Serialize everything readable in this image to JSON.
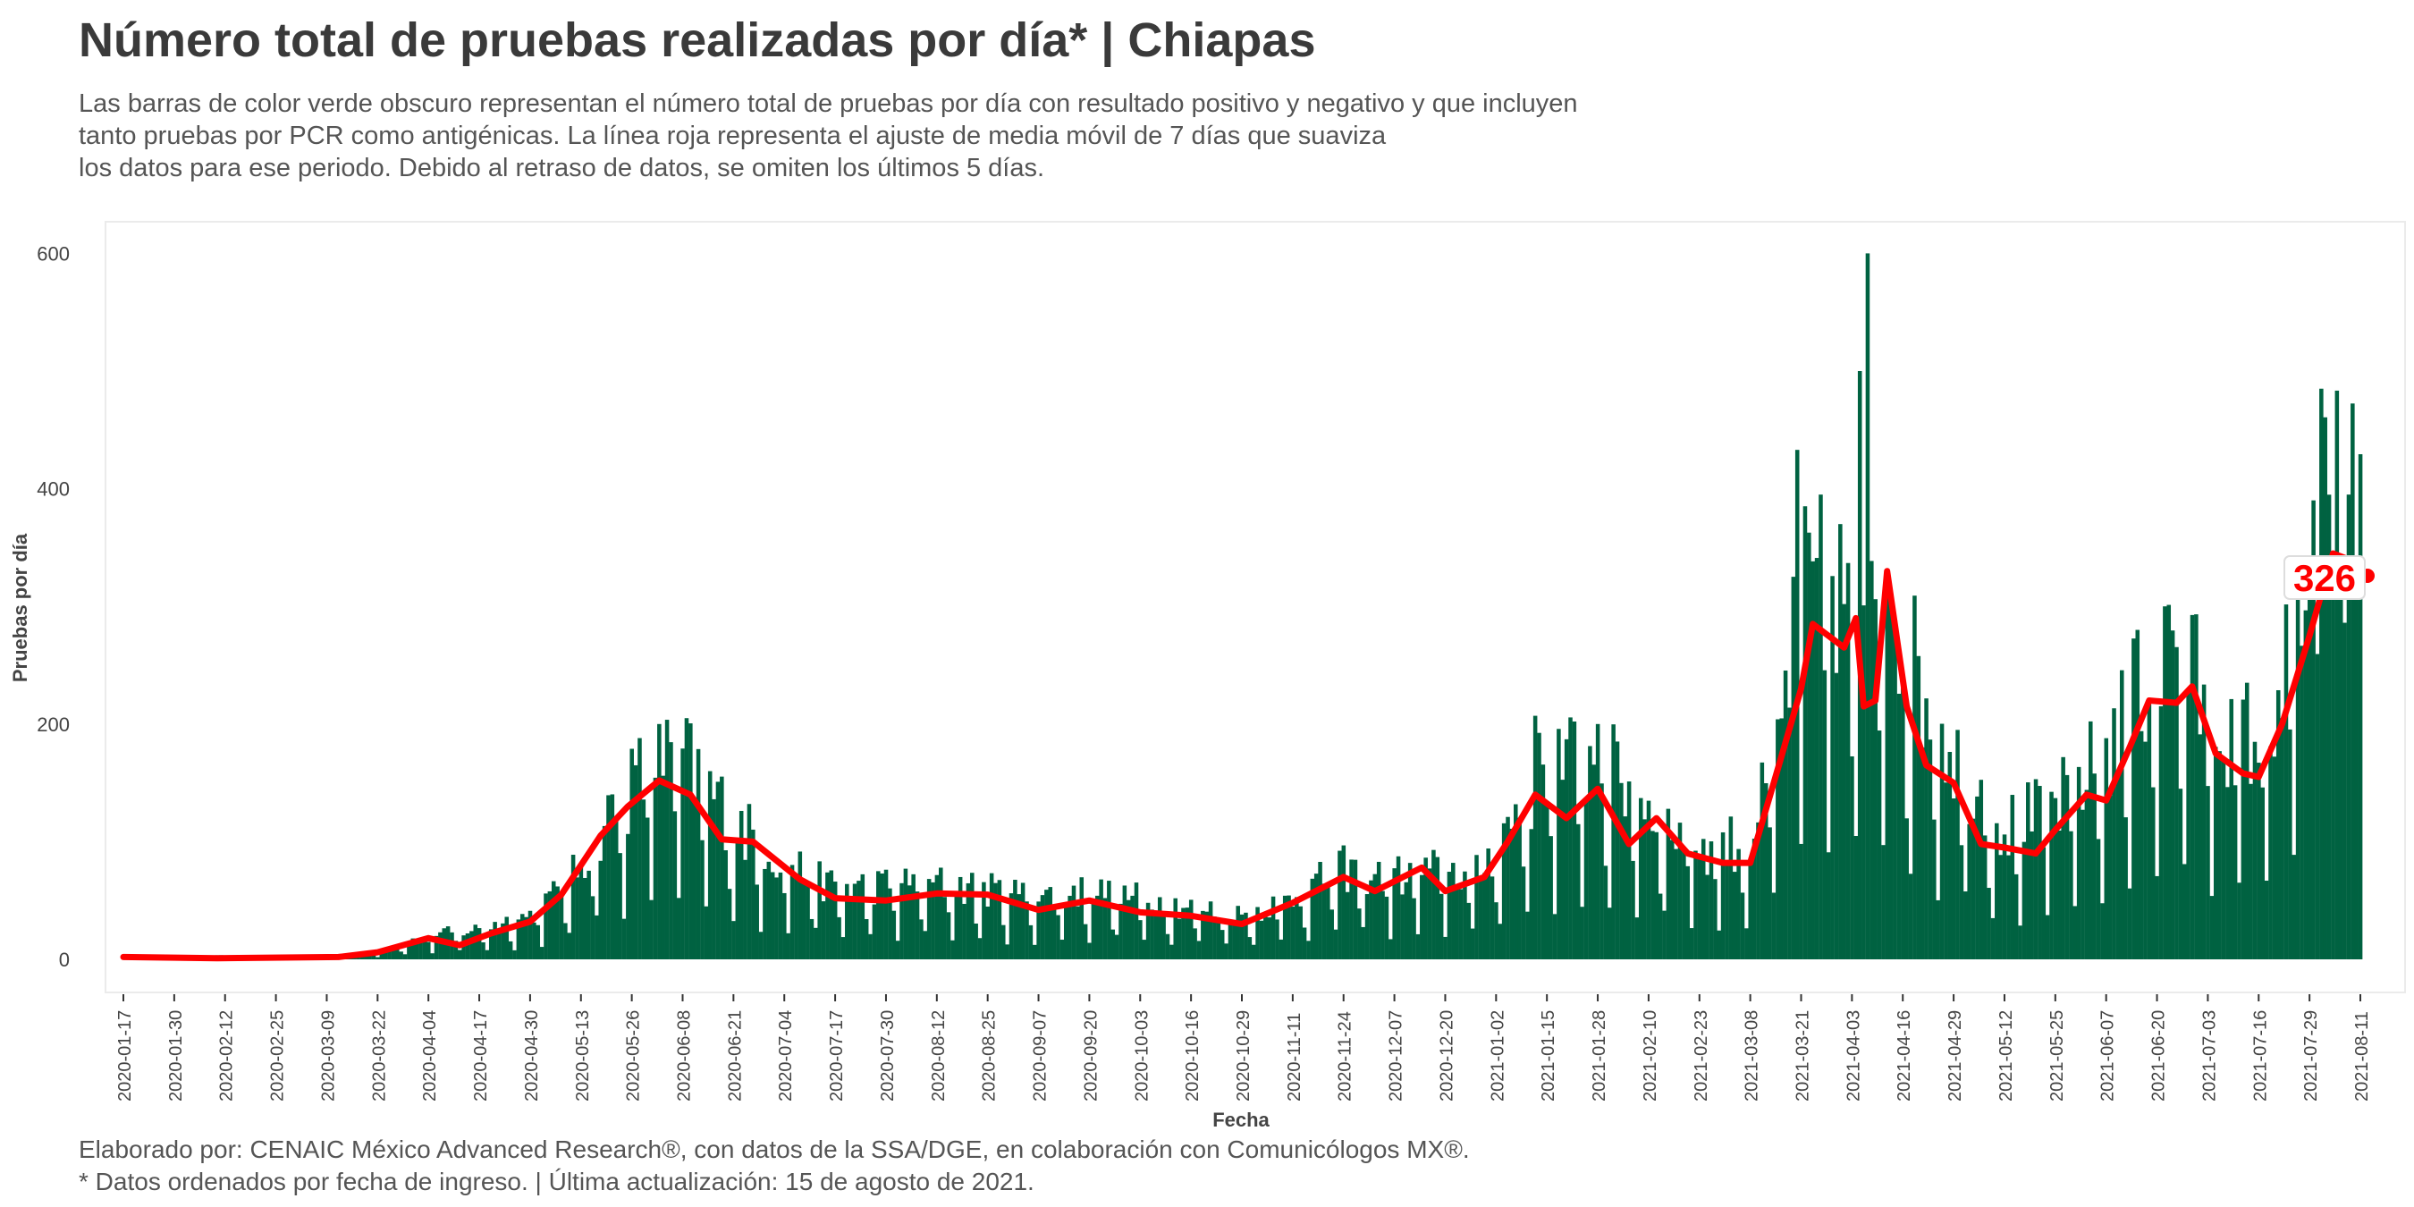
{
  "title": "Número total de pruebas realizadas por día* | Chiapas",
  "subtitle_lines": [
    "Las barras de color verde obscuro representan el número total de pruebas por día con resultado positivo y negativo y que incluyen",
    "tanto pruebas por PCR como antigénicas. La línea roja representa el ajuste de media móvil de 7 días que suaviza",
    "los datos para ese periodo. Debido al retraso de datos, se omiten los últimos 5 días."
  ],
  "caption_lines": [
    "Elaborado por: CENAIC México Advanced Research®, con datos de la SSA/DGE, en colaboración con Comunicólogos MX®.",
    "* Datos ordenados por fecha de ingreso. | Última actualización: 15 de agosto de 2021."
  ],
  "colors": {
    "bars": "#006241",
    "line": "#ff0000",
    "label_text": "#ff0000"
  },
  "chart_data": {
    "type": "bar",
    "title": "Número total de pruebas realizadas por día* | Chiapas",
    "xlabel": "Fecha",
    "ylabel": "Pruebas por día",
    "x_start": "2020-01-17",
    "x_end": "2021-08-11",
    "ylim": [
      0,
      620
    ],
    "y_ticks": [
      0,
      200,
      400,
      600
    ],
    "x_ticks": [
      "2020-01-17",
      "2020-01-30",
      "2020-02-12",
      "2020-02-25",
      "2020-03-09",
      "2020-03-22",
      "2020-04-04",
      "2020-04-17",
      "2020-04-30",
      "2020-05-13",
      "2020-05-26",
      "2020-06-08",
      "2020-06-21",
      "2020-07-04",
      "2020-07-17",
      "2020-07-30",
      "2020-08-12",
      "2020-08-25",
      "2020-09-07",
      "2020-09-20",
      "2020-10-03",
      "2020-10-16",
      "2020-10-29",
      "2020-11-11",
      "2020-11-24",
      "2020-12-07",
      "2020-12-20",
      "2021-01-02",
      "2021-01-15",
      "2021-01-28",
      "2021-02-10",
      "2021-02-23",
      "2021-03-08",
      "2021-03-21",
      "2021-04-03",
      "2021-04-16",
      "2021-04-29",
      "2021-05-12",
      "2021-05-25",
      "2021-06-07",
      "2021-06-20",
      "2021-07-03",
      "2021-07-16",
      "2021-07-29",
      "2021-08-11"
    ],
    "grid": false,
    "bars_anchors": [
      [
        "2020-01-17",
        2
      ],
      [
        "2020-03-15",
        3
      ],
      [
        "2020-03-25",
        8
      ],
      [
        "2020-04-04",
        17
      ],
      [
        "2020-04-17",
        22
      ],
      [
        "2020-04-30",
        32
      ],
      [
        "2020-05-10",
        55
      ],
      [
        "2020-05-18",
        95
      ],
      [
        "2020-05-26",
        125
      ],
      [
        "2020-06-02",
        150
      ],
      [
        "2020-06-10",
        140
      ],
      [
        "2020-06-21",
        100
      ],
      [
        "2020-07-04",
        70
      ],
      [
        "2020-07-17",
        52
      ],
      [
        "2020-08-12",
        55
      ],
      [
        "2020-09-07",
        45
      ],
      [
        "2020-09-20",
        50
      ],
      [
        "2020-10-16",
        38
      ],
      [
        "2020-10-29",
        32
      ],
      [
        "2020-11-11",
        45
      ],
      [
        "2020-11-24",
        65
      ],
      [
        "2020-12-07",
        60
      ],
      [
        "2020-12-20",
        65
      ],
      [
        "2020-12-28",
        60
      ],
      [
        "2021-01-08",
        110
      ],
      [
        "2021-01-15",
        140
      ],
      [
        "2021-01-28",
        145
      ],
      [
        "2021-02-10",
        110
      ],
      [
        "2021-02-23",
        82
      ],
      [
        "2021-03-08",
        85
      ],
      [
        "2021-03-14",
        140
      ],
      [
        "2021-03-21",
        260
      ],
      [
        "2021-03-28",
        275
      ],
      [
        "2021-04-03",
        255
      ],
      [
        "2021-04-07",
        215
      ],
      [
        "2021-04-11",
        320
      ],
      [
        "2021-04-16",
        230
      ],
      [
        "2021-04-22",
        190
      ],
      [
        "2021-04-29",
        150
      ],
      [
        "2021-05-12",
        95
      ],
      [
        "2021-05-25",
        110
      ],
      [
        "2021-06-07",
        150
      ],
      [
        "2021-06-20",
        215
      ],
      [
        "2021-06-27",
        225
      ],
      [
        "2021-07-03",
        175
      ],
      [
        "2021-07-16",
        160
      ],
      [
        "2021-07-22",
        200
      ],
      [
        "2021-07-29",
        275
      ],
      [
        "2021-08-04",
        335
      ],
      [
        "2021-08-11",
        330
      ]
    ],
    "bar_spikes": [
      [
        "2020-06-02",
        200
      ],
      [
        "2021-01-12",
        207
      ],
      [
        "2021-01-28",
        200
      ],
      [
        "2021-03-20",
        433
      ],
      [
        "2021-03-26",
        395
      ],
      [
        "2021-04-05",
        500
      ],
      [
        "2021-04-07",
        600
      ],
      [
        "2021-04-12",
        315
      ],
      [
        "2021-06-15",
        280
      ],
      [
        "2021-06-22",
        300
      ],
      [
        "2021-08-01",
        485
      ],
      [
        "2021-08-08",
        395
      ]
    ],
    "moving_average": [
      [
        "2020-01-17",
        2
      ],
      [
        "2020-02-10",
        1
      ],
      [
        "2020-03-12",
        2
      ],
      [
        "2020-03-22",
        6
      ],
      [
        "2020-04-04",
        18
      ],
      [
        "2020-04-12",
        12
      ],
      [
        "2020-04-20",
        22
      ],
      [
        "2020-04-30",
        32
      ],
      [
        "2020-05-08",
        55
      ],
      [
        "2020-05-18",
        105
      ],
      [
        "2020-05-25",
        130
      ],
      [
        "2020-06-02",
        152
      ],
      [
        "2020-06-10",
        140
      ],
      [
        "2020-06-18",
        102
      ],
      [
        "2020-06-26",
        100
      ],
      [
        "2020-07-08",
        68
      ],
      [
        "2020-07-17",
        52
      ],
      [
        "2020-07-30",
        50
      ],
      [
        "2020-08-12",
        56
      ],
      [
        "2020-08-25",
        55
      ],
      [
        "2020-09-07",
        42
      ],
      [
        "2020-09-20",
        50
      ],
      [
        "2020-10-03",
        40
      ],
      [
        "2020-10-16",
        37
      ],
      [
        "2020-10-29",
        30
      ],
      [
        "2020-11-11",
        48
      ],
      [
        "2020-11-24",
        70
      ],
      [
        "2020-12-02",
        58
      ],
      [
        "2020-12-14",
        78
      ],
      [
        "2020-12-20",
        58
      ],
      [
        "2020-12-30",
        70
      ],
      [
        "2021-01-05",
        100
      ],
      [
        "2021-01-12",
        140
      ],
      [
        "2021-01-20",
        120
      ],
      [
        "2021-01-28",
        145
      ],
      [
        "2021-02-05",
        98
      ],
      [
        "2021-02-12",
        120
      ],
      [
        "2021-02-20",
        90
      ],
      [
        "2021-03-01",
        82
      ],
      [
        "2021-03-08",
        82
      ],
      [
        "2021-03-14",
        150
      ],
      [
        "2021-03-21",
        230
      ],
      [
        "2021-03-24",
        285
      ],
      [
        "2021-04-01",
        265
      ],
      [
        "2021-04-04",
        290
      ],
      [
        "2021-04-06",
        215
      ],
      [
        "2021-04-09",
        220
      ],
      [
        "2021-04-12",
        330
      ],
      [
        "2021-04-17",
        215
      ],
      [
        "2021-04-22",
        165
      ],
      [
        "2021-04-29",
        150
      ],
      [
        "2021-05-06",
        98
      ],
      [
        "2021-05-12",
        95
      ],
      [
        "2021-05-20",
        90
      ],
      [
        "2021-05-25",
        110
      ],
      [
        "2021-06-02",
        140
      ],
      [
        "2021-06-07",
        135
      ],
      [
        "2021-06-13",
        180
      ],
      [
        "2021-06-18",
        220
      ],
      [
        "2021-06-25",
        218
      ],
      [
        "2021-06-29",
        232
      ],
      [
        "2021-07-05",
        175
      ],
      [
        "2021-07-12",
        158
      ],
      [
        "2021-07-16",
        155
      ],
      [
        "2021-07-22",
        200
      ],
      [
        "2021-07-29",
        275
      ],
      [
        "2021-08-04",
        345
      ],
      [
        "2021-08-08",
        340
      ],
      [
        "2021-08-11",
        326
      ]
    ],
    "last_value_label": "326"
  }
}
